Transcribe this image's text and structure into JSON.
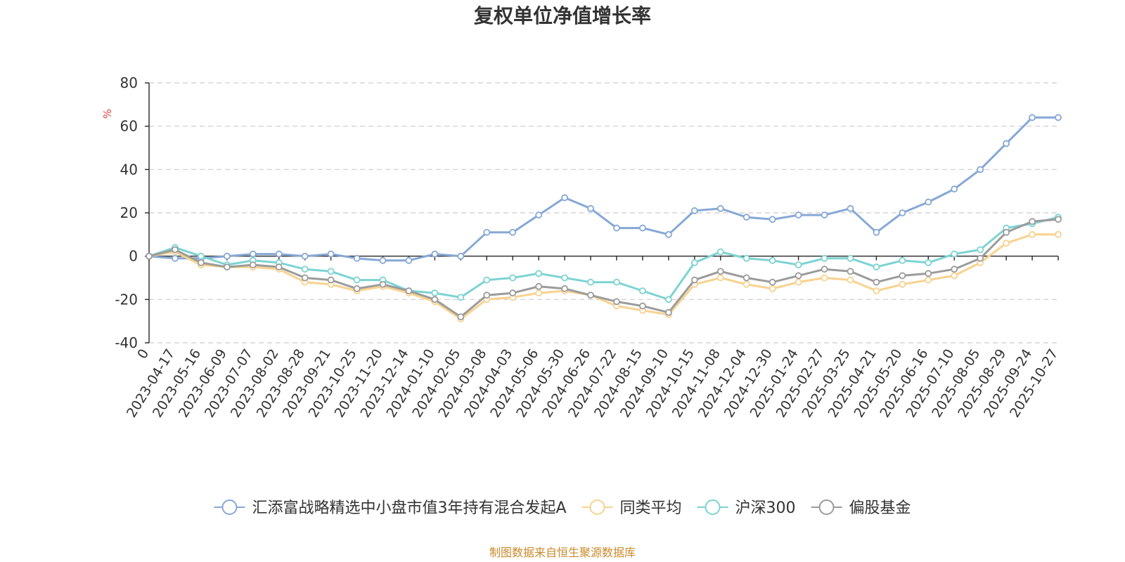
{
  "chart_data": {
    "type": "line",
    "title": "复权单位净值增长率",
    "ylabel": "%",
    "ylim": [
      -40,
      80
    ],
    "yticks": [
      -40,
      -20,
      0,
      20,
      40,
      60,
      80
    ],
    "grid": true,
    "legend_position": "bottom",
    "x_labels": [
      "0",
      "2023-04-17",
      "2023-05-16",
      "2023-06-09",
      "2023-07-07",
      "2023-08-02",
      "2023-08-28",
      "2023-09-21",
      "2023-10-25",
      "2023-11-20",
      "2023-12-14",
      "2024-01-10",
      "2024-02-05",
      "2024-03-08",
      "2024-04-03",
      "2024-05-06",
      "2024-05-30",
      "2024-06-26",
      "2024-07-22",
      "2024-08-15",
      "2024-09-10",
      "2024-10-15",
      "2024-11-08",
      "2024-12-04",
      "2024-12-30",
      "2025-01-24",
      "2025-02-27",
      "2025-03-25",
      "2025-04-21",
      "2025-05-20",
      "2025-06-16",
      "2025-07-10",
      "2025-08-05",
      "2025-08-29",
      "2025-09-24",
      "2025-10-27"
    ],
    "series": [
      {
        "name": "汇添富战略精选中小盘市值3年持有混合发起A",
        "color": "#86a8d6",
        "values": [
          0,
          -1,
          -1,
          0,
          1,
          1,
          0,
          1,
          -1,
          -2,
          -2,
          1,
          0,
          11,
          11,
          19,
          27,
          22,
          13,
          13,
          10,
          21,
          22,
          18,
          17,
          19,
          19,
          22,
          11,
          20,
          25,
          31,
          40,
          52,
          64,
          64
        ]
      },
      {
        "name": "同类平均",
        "color": "#f8d28f",
        "values": [
          0,
          2,
          -4,
          -5,
          -5,
          -6,
          -12,
          -13,
          -16,
          -14,
          -17,
          -21,
          -29,
          -20,
          -19,
          -17,
          -16,
          -18,
          -23,
          -25,
          -27,
          -13,
          -10,
          -13,
          -15,
          -12,
          -10,
          -11,
          -16,
          -13,
          -11,
          -9,
          -3,
          6,
          10,
          10
        ]
      },
      {
        "name": "沪深300",
        "color": "#7dd3d3",
        "values": [
          0,
          4,
          0,
          -4,
          -2,
          -3,
          -6,
          -7,
          -11,
          -11,
          -16,
          -17,
          -19,
          -11,
          -10,
          -8,
          -10,
          -12,
          -12,
          -16,
          -20,
          -3,
          2,
          -1,
          -2,
          -4,
          -1,
          -1,
          -5,
          -2,
          -3,
          1,
          3,
          13,
          15,
          18
        ]
      },
      {
        "name": "偏股基金",
        "color": "#9b9b9b",
        "values": [
          0,
          3,
          -3,
          -5,
          -4,
          -5,
          -10,
          -11,
          -15,
          -13,
          -16,
          -20,
          -28,
          -18,
          -17,
          -14,
          -15,
          -18,
          -21,
          -23,
          -26,
          -11,
          -7,
          -10,
          -12,
          -9,
          -6,
          -7,
          -12,
          -9,
          -8,
          -6,
          -1,
          11,
          16,
          17
        ]
      }
    ]
  },
  "source_note": "制图数据来自恒生聚源数据库"
}
